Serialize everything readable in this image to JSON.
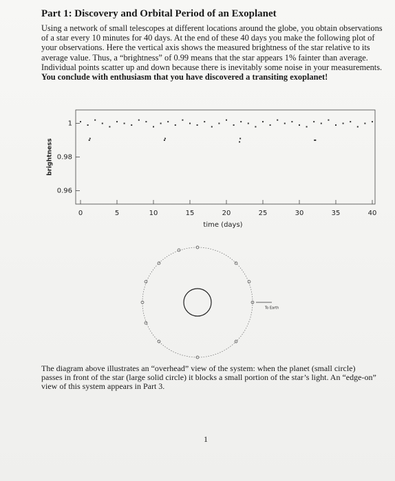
{
  "document": {
    "title": "Part 1: Discovery and Orbital Period of an Exoplanet",
    "paragraph": "Using a network of small telescopes at different locations around the globe, you obtain observations of a star every 10 minutes for 40 days. At the end of these 40 days you make the following plot of your observations. Here the vertical axis shows the measured brightness of the star relative to its average value. Thus, a “brightness” of 0.99 means that the star appears 1% fainter than average. Individual points scatter up and down because there is inevitably some noise in your measurements.",
    "conclusion": "You conclude with enthusiasm that you have discovered a transiting exoplanet!",
    "figure": {
      "type": "scatter",
      "xlabel": "time (days)",
      "ylabel": "brightness",
      "xlim": [
        0,
        40
      ],
      "ylim": [
        0.952,
        1.008
      ],
      "xticks": [
        0,
        5,
        10,
        15,
        20,
        25,
        30,
        35,
        40
      ],
      "yticks": [
        0.96,
        0.98,
        1
      ],
      "color": "#333333",
      "x": [
        0,
        1,
        2,
        3,
        4,
        5,
        6,
        7,
        8,
        9,
        10,
        11,
        12,
        13,
        14,
        15,
        16,
        17,
        18,
        19,
        20,
        21,
        22,
        23,
        24,
        25,
        26,
        27,
        28,
        29,
        30,
        31,
        32,
        33,
        34,
        35,
        36,
        37,
        38,
        39,
        40,
        1.2,
        1.3,
        11.5,
        11.6,
        21.8,
        21.9,
        32.1,
        32.2
      ],
      "y": [
        1.001,
        0.999,
        1.002,
        1.0,
        0.998,
        1.001,
        1.0,
        0.999,
        1.002,
        1.001,
        0.998,
        1.0,
        1.001,
        0.999,
        1.002,
        1.0,
        0.999,
        1.001,
        0.998,
        1.0,
        1.002,
        0.999,
        1.001,
        1.0,
        0.998,
        1.001,
        0.999,
        1.002,
        1.0,
        1.001,
        0.999,
        0.998,
        1.001,
        1.0,
        1.002,
        0.999,
        1.0,
        1.001,
        0.998,
        1.0,
        1.001,
        0.99,
        0.991,
        0.99,
        0.991,
        0.989,
        0.991,
        0.99,
        0.99
      ]
    },
    "diagram": {
      "label": "To Earth"
    },
    "caption": "The diagram above illustrates an “overhead” view of the system: when the planet (small circle) passes in front of the star (large solid circle) it blocks a small portion of the star’s light. An “edge-on” view of this system appears in Part 3.",
    "page_number": "1"
  }
}
